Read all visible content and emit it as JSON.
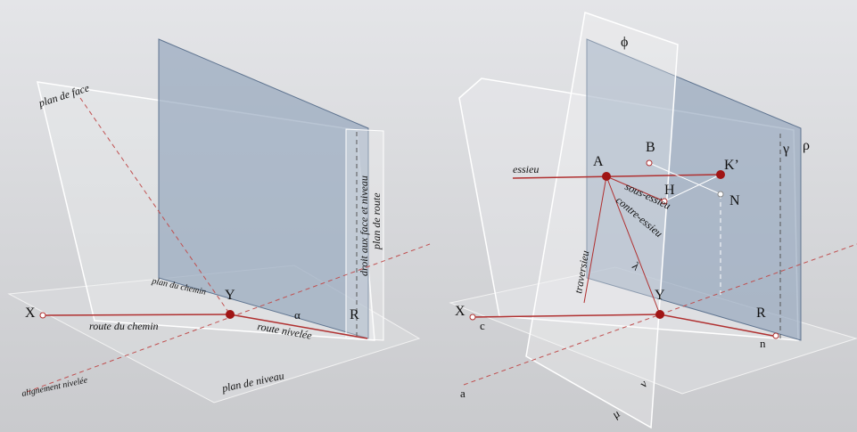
{
  "left_panel": {
    "labels": [
      "plan de face",
      "droit aux face et niveau",
      "plan de route",
      "plan du chemin",
      "X",
      "Y",
      "R",
      "α",
      "route du chemin",
      "route nivelée",
      "alignement nivelée",
      "plan de niveau"
    ]
  },
  "right_panel": {
    "labels": [
      "ϕ",
      "γ",
      "ρ",
      "essieu",
      "A",
      "B",
      "K’",
      "H",
      "N",
      "sous-essieu",
      "contre-essieu",
      "traversieu",
      "λ",
      "X",
      "c",
      "Y",
      "R",
      "n",
      "a",
      "μ",
      "ν"
    ]
  }
}
